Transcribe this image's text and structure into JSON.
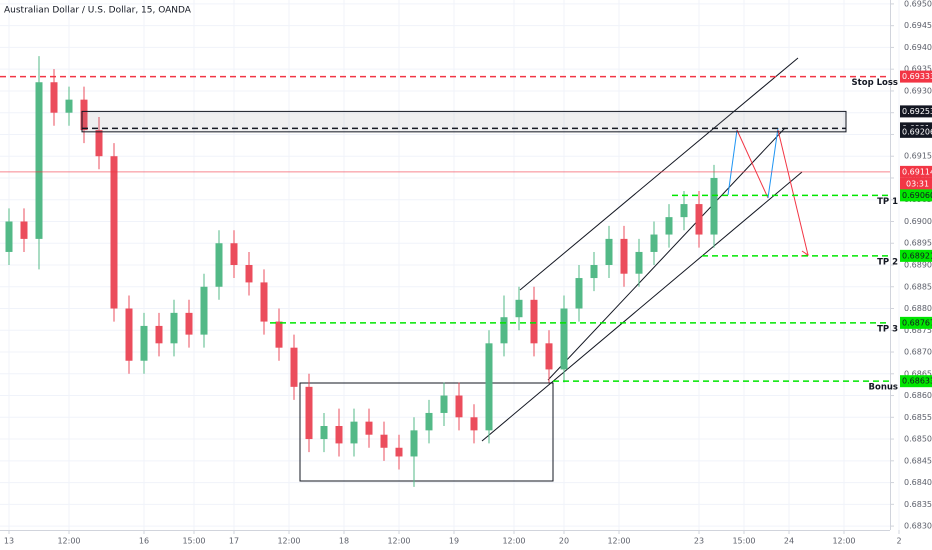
{
  "chart_data": {
    "type": "candlestick",
    "title": "Australian Dollar / U.S. Dollar, 15, OANDA",
    "x": [
      0,
      3,
      6,
      9,
      12,
      15,
      18,
      21,
      24,
      27,
      30,
      33,
      36,
      39,
      42,
      45,
      48,
      51,
      54,
      57,
      60,
      63,
      66,
      69,
      72,
      75,
      78,
      81,
      84,
      87,
      90,
      93,
      96,
      99,
      102,
      105,
      108,
      111,
      114,
      117,
      120,
      123,
      126,
      129,
      132,
      135,
      138,
      141
    ],
    "open": [
      0.6893,
      0.69,
      0.6896,
      0.6932,
      0.6925,
      0.6928,
      0.6921,
      0.6915,
      0.688,
      0.6868,
      0.6876,
      0.6872,
      0.6879,
      0.6874,
      0.6885,
      0.6895,
      0.689,
      0.6886,
      0.6877,
      0.6871,
      0.6862,
      0.685,
      0.6853,
      0.6849,
      0.6854,
      0.6851,
      0.6848,
      0.6846,
      0.6852,
      0.6856,
      0.686,
      0.6855,
      0.6852,
      0.6872,
      0.6878,
      0.6882,
      0.6872,
      0.6866,
      0.688,
      0.6887,
      0.689,
      0.6896,
      0.6888,
      0.6893,
      0.6897,
      0.6901,
      0.6904,
      0.6897
    ],
    "high": [
      0.6903,
      0.6903,
      0.6938,
      0.6935,
      0.6931,
      0.6931,
      0.6924,
      0.6918,
      0.6883,
      0.6879,
      0.6879,
      0.6882,
      0.6882,
      0.6888,
      0.6898,
      0.6898,
      0.6893,
      0.6889,
      0.688,
      0.6874,
      0.6865,
      0.6856,
      0.6857,
      0.6857,
      0.6857,
      0.6854,
      0.6851,
      0.6855,
      0.6859,
      0.6863,
      0.6863,
      0.6858,
      0.6875,
      0.6883,
      0.6885,
      0.6885,
      0.6875,
      0.6883,
      0.689,
      0.6893,
      0.6899,
      0.6899,
      0.6896,
      0.69,
      0.6904,
      0.6907,
      0.6907,
      0.6913
    ],
    "low": [
      0.689,
      0.6893,
      0.6889,
      0.6922,
      0.6922,
      0.6918,
      0.6912,
      0.6877,
      0.6865,
      0.6865,
      0.6869,
      0.6869,
      0.6871,
      0.6871,
      0.6882,
      0.6887,
      0.6883,
      0.6874,
      0.6868,
      0.6859,
      0.6847,
      0.6847,
      0.6846,
      0.6846,
      0.6848,
      0.6845,
      0.6843,
      0.6839,
      0.6849,
      0.6853,
      0.6852,
      0.6849,
      0.6849,
      0.6869,
      0.6875,
      0.6869,
      0.6863,
      0.6863,
      0.6877,
      0.6884,
      0.6887,
      0.6885,
      0.6885,
      0.689,
      0.6894,
      0.6898,
      0.6894,
      0.6894
    ],
    "close": [
      0.69,
      0.6896,
      0.6932,
      0.6925,
      0.6928,
      0.6921,
      0.6915,
      0.688,
      0.6868,
      0.6876,
      0.6872,
      0.6879,
      0.6874,
      0.6885,
      0.6895,
      0.689,
      0.6886,
      0.6877,
      0.6871,
      0.6862,
      0.685,
      0.6853,
      0.6849,
      0.6854,
      0.6851,
      0.6848,
      0.6846,
      0.6852,
      0.6856,
      0.686,
      0.6855,
      0.6852,
      0.6872,
      0.6878,
      0.6882,
      0.6872,
      0.6866,
      0.688,
      0.6887,
      0.689,
      0.6896,
      0.6888,
      0.6893,
      0.6897,
      0.6901,
      0.6904,
      0.6897,
      0.691
    ],
    "up_color": "#53b987",
    "down_color": "#eb4d5c",
    "xlim": [
      -1.8,
      176.2
    ],
    "xticks": [
      {
        "value": 0,
        "label": "13"
      },
      {
        "value": 12,
        "label": "12:00"
      },
      {
        "value": 27,
        "label": "16"
      },
      {
        "value": 37,
        "label": "15:00"
      },
      {
        "value": 45,
        "label": "17"
      },
      {
        "value": 56,
        "label": "12:00"
      },
      {
        "value": 67,
        "label": "18"
      },
      {
        "value": 78,
        "label": "12:00"
      },
      {
        "value": 89,
        "label": "19"
      },
      {
        "value": 101,
        "label": "12:00"
      },
      {
        "value": 111,
        "label": "20"
      },
      {
        "value": 122,
        "label": "12:00"
      },
      {
        "value": 138,
        "label": "23"
      },
      {
        "value": 147,
        "label": "15:00"
      },
      {
        "value": 156,
        "label": "24"
      },
      {
        "value": 167,
        "label": "12:00"
      },
      {
        "value": 178,
        "label": "2"
      }
    ],
    "ylim": [
      0.68291,
      0.69509
    ],
    "yticks": [
      {
        "value": 0.695,
        "label": "0.69500"
      },
      {
        "value": 0.6945,
        "label": "0.69450"
      },
      {
        "value": 0.694,
        "label": "0.69400"
      },
      {
        "value": 0.6935,
        "label": "0.69350"
      },
      {
        "value": 0.693,
        "label": "0.69300"
      },
      {
        "value": 0.6925,
        "label": "0.69250"
      },
      {
        "value": 0.692,
        "label": "0.69200"
      },
      {
        "value": 0.6915,
        "label": "0.69150"
      },
      {
        "value": 0.691,
        "label": "0.69100"
      },
      {
        "value": 0.6905,
        "label": "0.69050"
      },
      {
        "value": 0.69,
        "label": "0.69000"
      },
      {
        "value": 0.6895,
        "label": "0.68950"
      },
      {
        "value": 0.689,
        "label": "0.68900"
      },
      {
        "value": 0.6885,
        "label": "0.68850"
      },
      {
        "value": 0.688,
        "label": "0.68800"
      },
      {
        "value": 0.6875,
        "label": "0.68750"
      },
      {
        "value": 0.687,
        "label": "0.68700"
      },
      {
        "value": 0.6865,
        "label": "0.68650"
      },
      {
        "value": 0.686,
        "label": "0.68600"
      },
      {
        "value": 0.6855,
        "label": "0.68550"
      },
      {
        "value": 0.685,
        "label": "0.68500"
      },
      {
        "value": 0.6845,
        "label": "0.68450"
      },
      {
        "value": 0.684,
        "label": "0.68400"
      },
      {
        "value": 0.6835,
        "label": "0.68350"
      },
      {
        "value": 0.683,
        "label": "0.68300"
      }
    ],
    "levels": [
      {
        "name": "Stop Loss",
        "value": 0.69333,
        "label": "0.69333",
        "color": "#f23645",
        "style": "dashed"
      },
      {
        "value": 0.69253,
        "label": "0.69253",
        "color": "#131722",
        "style": "solid"
      },
      {
        "value": 0.69214,
        "label": "0.69214",
        "color": "#131722",
        "style": "dashed"
      },
      {
        "value": 0.69206,
        "label": "0.69206",
        "color": "#131722",
        "style": "solid"
      },
      {
        "value": 0.69114,
        "label": "0.69114",
        "color": "#f23645",
        "style": "solid",
        "countdown": "03:31"
      },
      {
        "name": "TP 1",
        "value": 0.6906,
        "label": "0.69060",
        "color": "#00e600",
        "style": "dashed"
      },
      {
        "name": "TP 2",
        "value": 0.68921,
        "label": "0.68921",
        "color": "#00e600",
        "style": "dashed"
      },
      {
        "name": "TP 3",
        "value": 0.68767,
        "label": "0.68767",
        "color": "#00e600",
        "style": "dashed"
      },
      {
        "name": "Bonus",
        "value": 0.68633,
        "label": "0.68633",
        "color": "#00e600",
        "style": "dashed"
      }
    ]
  }
}
